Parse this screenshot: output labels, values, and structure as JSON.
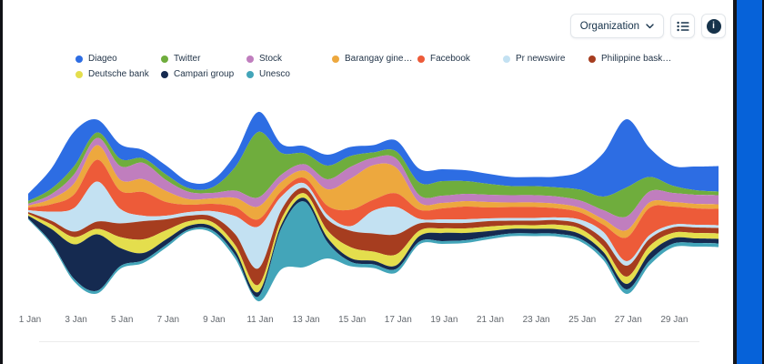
{
  "controls": {
    "dropdown_label": "Organization",
    "list_button_icon": "list-icon",
    "info_button_icon": "info-icon"
  },
  "frame": {
    "right_bar_color": "#0662D9"
  },
  "chart_data": {
    "type": "area",
    "subtype": "streamgraph",
    "title": "",
    "xlabel": "",
    "ylabel": "",
    "grid": false,
    "legend_position": "top",
    "x": [
      1,
      2,
      3,
      4,
      5,
      6,
      7,
      8,
      9,
      10,
      11,
      12,
      13,
      14,
      15,
      16,
      17,
      18,
      19,
      20,
      21,
      22,
      23,
      24,
      25,
      26,
      27,
      28,
      29,
      30,
      31
    ],
    "x_unit": "day of January",
    "tick_labels": [
      "1 Jan",
      "3 Jan",
      "5 Jan",
      "7 Jan",
      "9 Jan",
      "11 Jan",
      "13 Jan",
      "15 Jan",
      "17 Jan",
      "19 Jan",
      "21 Jan",
      "23 Jan",
      "25 Jan",
      "27 Jan",
      "29 Jan"
    ],
    "tick_days": [
      1,
      3,
      5,
      7,
      9,
      11,
      13,
      15,
      17,
      19,
      21,
      23,
      25,
      27,
      29
    ],
    "series": [
      {
        "name": "Diageo",
        "color": "#2D6DE3",
        "values": [
          8,
          22,
          38,
          14,
          16,
          9,
          10,
          7,
          8,
          14,
          22,
          10,
          8,
          12,
          10,
          8,
          12,
          15,
          13,
          12,
          11,
          10,
          10,
          12,
          20,
          48,
          75,
          32,
          22,
          26,
          28
        ]
      },
      {
        "name": "Twitter",
        "color": "#6FAD3D",
        "values": [
          3,
          6,
          9,
          6,
          8,
          5,
          6,
          4,
          6,
          26,
          72,
          24,
          12,
          15,
          12,
          6,
          8,
          14,
          16,
          14,
          12,
          10,
          10,
          10,
          12,
          15,
          32,
          16,
          8,
          5,
          4
        ]
      },
      {
        "name": "Stock",
        "color": "#C07EBE",
        "values": [
          2,
          5,
          10,
          8,
          15,
          18,
          12,
          8,
          6,
          8,
          10,
          8,
          7,
          11,
          13,
          8,
          10,
          8,
          8,
          8,
          8,
          8,
          8,
          8,
          8,
          10,
          15,
          12,
          10,
          10,
          10
        ]
      },
      {
        "name": "Barangay gine…",
        "color": "#EDA83E",
        "values": [
          2,
          6,
          12,
          16,
          12,
          14,
          12,
          6,
          6,
          10,
          14,
          10,
          8,
          18,
          34,
          38,
          28,
          8,
          6,
          6,
          6,
          5,
          5,
          5,
          5,
          6,
          8,
          6,
          5,
          5,
          5
        ]
      },
      {
        "name": "Facebook",
        "color": "#ED5B39",
        "values": [
          3,
          8,
          15,
          24,
          20,
          26,
          15,
          8,
          8,
          10,
          8,
          6,
          6,
          10,
          18,
          12,
          15,
          10,
          12,
          14,
          12,
          12,
          12,
          10,
          8,
          8,
          26,
          30,
          20,
          18,
          18
        ]
      },
      {
        "name": "Pr newswire",
        "color": "#C3E1F2",
        "values": [
          2,
          10,
          26,
          44,
          16,
          6,
          4,
          4,
          6,
          20,
          46,
          15,
          5,
          5,
          5,
          25,
          30,
          5,
          4,
          4,
          3,
          3,
          3,
          3,
          5,
          8,
          5,
          4,
          3,
          3,
          3
        ]
      },
      {
        "name": "Philippine bask…",
        "color": "#A63D1F",
        "values": [
          2,
          4,
          6,
          8,
          15,
          20,
          12,
          6,
          6,
          12,
          18,
          10,
          6,
          12,
          18,
          20,
          22,
          8,
          6,
          6,
          6,
          5,
          5,
          5,
          5,
          8,
          12,
          8,
          6,
          6,
          6
        ]
      },
      {
        "name": "Deutsche bank",
        "color": "#E4DE4D",
        "values": [
          2,
          5,
          8,
          6,
          12,
          15,
          10,
          5,
          5,
          6,
          8,
          6,
          5,
          8,
          12,
          10,
          12,
          6,
          5,
          5,
          5,
          4,
          4,
          5,
          6,
          6,
          8,
          8,
          6,
          6,
          6
        ]
      },
      {
        "name": "Campari group",
        "color": "#152A50",
        "values": [
          3,
          15,
          38,
          62,
          20,
          8,
          6,
          4,
          4,
          5,
          5,
          4,
          4,
          5,
          4,
          4,
          4,
          6,
          9,
          8,
          6,
          5,
          5,
          5,
          5,
          5,
          6,
          8,
          6,
          5,
          5
        ]
      },
      {
        "name": "Unesco",
        "color": "#43A5B9",
        "values": [
          1,
          2,
          3,
          3,
          3,
          3,
          3,
          2,
          3,
          4,
          5,
          45,
          72,
          18,
          5,
          4,
          4,
          3,
          3,
          3,
          3,
          3,
          3,
          3,
          3,
          4,
          5,
          5,
          4,
          4,
          4
        ]
      }
    ]
  }
}
